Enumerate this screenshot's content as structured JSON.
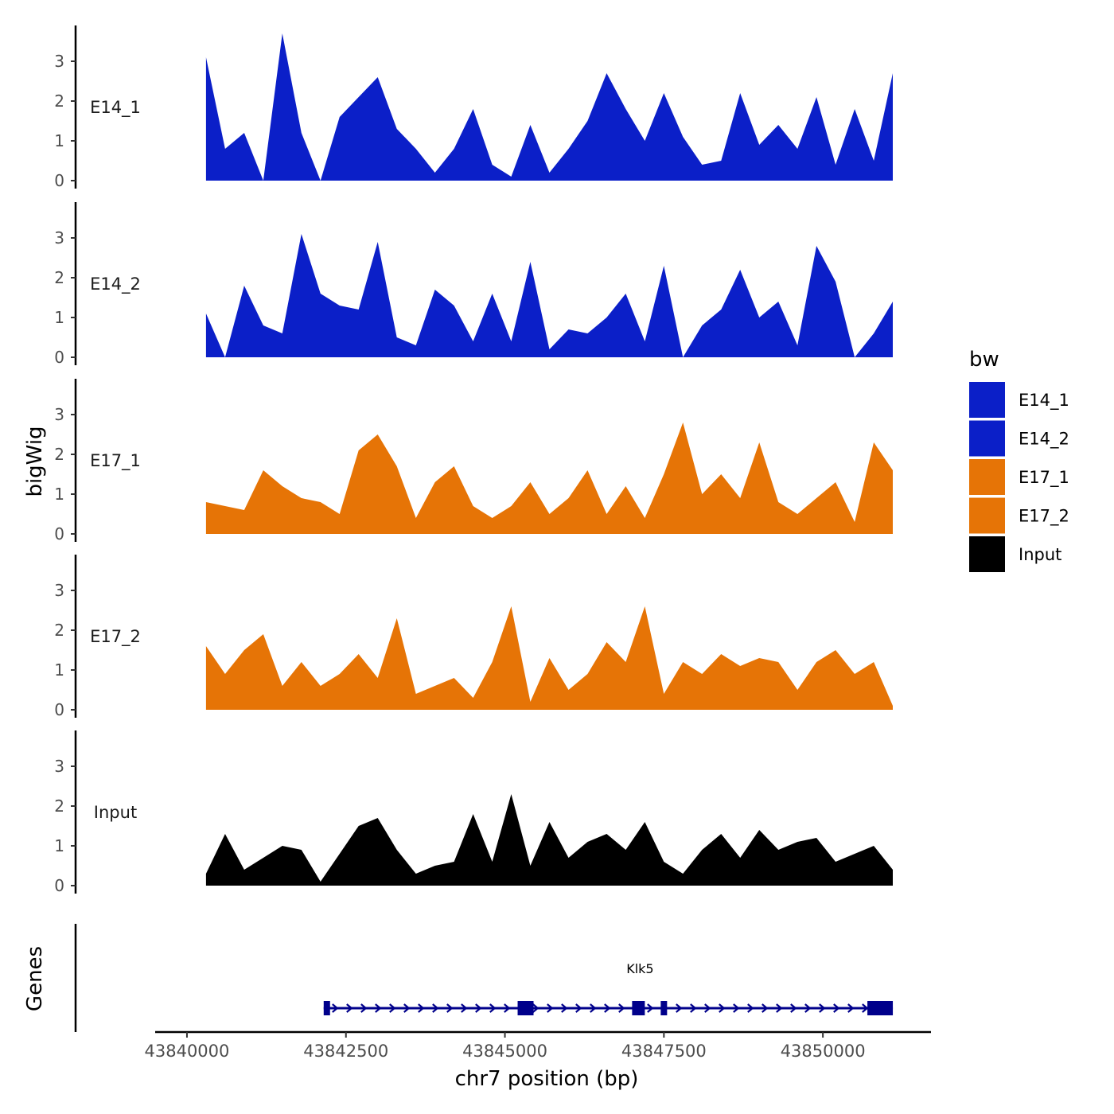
{
  "chart_data": {
    "type": "area",
    "title": "",
    "xlabel": "chr7 position (bp)",
    "ylabel_tracks": "bigWig",
    "ylabel_genes": "Genes",
    "xlim": [
      43839500,
      43851700
    ],
    "ylim": [
      0,
      3.9
    ],
    "x_ticks": [
      43840000,
      43842500,
      43845000,
      43847500,
      43850000
    ],
    "x_tick_labels": [
      "43840000",
      "43842500",
      "43845000",
      "43847500",
      "43850000"
    ],
    "y_ticks": [
      0,
      1,
      2,
      3
    ],
    "y_tick_labels": [
      "0",
      "1",
      "2",
      "3"
    ],
    "legend": {
      "title": "bw",
      "position": "right",
      "entries": [
        {
          "label": "E14_1",
          "color": "#0B1FC8"
        },
        {
          "label": "E14_2",
          "color": "#0B1FC8"
        },
        {
          "label": "E17_1",
          "color": "#E67406"
        },
        {
          "label": "E17_2",
          "color": "#E67406"
        },
        {
          "label": "Input",
          "color": "#000000"
        }
      ]
    },
    "x_sample_positions": [
      43840300,
      43840600,
      43840900,
      43841200,
      43841500,
      43841800,
      43842100,
      43842400,
      43842700,
      43843000,
      43843300,
      43843600,
      43843900,
      43844200,
      43844500,
      43844800,
      43845100,
      43845400,
      43845700,
      43846000,
      43846300,
      43846600,
      43846900,
      43847200,
      43847500,
      43847800,
      43848100,
      43848400,
      43848700,
      43849000,
      43849300,
      43849600,
      43849900,
      43850200,
      43850500,
      43850800,
      43851100
    ],
    "series": [
      {
        "name": "E14_1",
        "color": "#0B1FC8",
        "values": [
          3.1,
          0.8,
          1.2,
          0.0,
          3.7,
          1.2,
          0.0,
          1.6,
          2.1,
          2.6,
          1.3,
          0.8,
          0.2,
          0.8,
          1.8,
          0.4,
          0.1,
          1.4,
          0.2,
          0.8,
          1.5,
          2.7,
          1.8,
          1.0,
          2.2,
          1.1,
          0.4,
          0.5,
          2.2,
          0.9,
          1.4,
          0.8,
          2.1,
          0.4,
          1.8,
          0.5,
          2.7
        ]
      },
      {
        "name": "E14_2",
        "color": "#0B1FC8",
        "values": [
          1.1,
          0.0,
          1.8,
          0.8,
          0.6,
          3.1,
          1.6,
          1.3,
          1.2,
          2.9,
          0.5,
          0.3,
          1.7,
          1.3,
          0.4,
          1.6,
          0.4,
          2.4,
          0.2,
          0.7,
          0.6,
          1.0,
          1.6,
          0.4,
          2.3,
          0.0,
          0.8,
          1.2,
          2.2,
          1.0,
          1.4,
          0.3,
          2.8,
          1.9,
          0.0,
          0.6,
          1.4
        ]
      },
      {
        "name": "E17_1",
        "color": "#E67406",
        "values": [
          0.8,
          0.7,
          0.6,
          1.6,
          1.2,
          0.9,
          0.8,
          0.5,
          2.1,
          2.5,
          1.7,
          0.4,
          1.3,
          1.7,
          0.7,
          0.4,
          0.7,
          1.3,
          0.5,
          0.9,
          1.6,
          0.5,
          1.2,
          0.4,
          1.5,
          2.8,
          1.0,
          1.5,
          0.9,
          2.3,
          0.8,
          0.5,
          0.9,
          1.3,
          0.3,
          2.3,
          1.6
        ]
      },
      {
        "name": "E17_2",
        "color": "#E67406",
        "values": [
          1.6,
          0.9,
          1.5,
          1.9,
          0.6,
          1.2,
          0.6,
          0.9,
          1.4,
          0.8,
          2.3,
          0.4,
          0.6,
          0.8,
          0.3,
          1.2,
          2.6,
          0.2,
          1.3,
          0.5,
          0.9,
          1.7,
          1.2,
          2.6,
          0.4,
          1.2,
          0.9,
          1.4,
          1.1,
          1.3,
          1.2,
          0.5,
          1.2,
          1.5,
          0.9,
          1.2,
          0.1
        ]
      },
      {
        "name": "Input",
        "color": "#000000",
        "values": [
          0.3,
          1.3,
          0.4,
          0.7,
          1.0,
          0.9,
          0.1,
          0.8,
          1.5,
          1.7,
          0.9,
          0.3,
          0.5,
          0.6,
          1.8,
          0.6,
          2.3,
          0.5,
          1.6,
          0.7,
          1.1,
          1.3,
          0.9,
          1.6,
          0.6,
          0.3,
          0.9,
          1.3,
          0.7,
          1.4,
          0.9,
          1.1,
          1.2,
          0.6,
          0.8,
          1.0,
          0.4
        ]
      }
    ],
    "gene": {
      "name": "Klk5",
      "start": 43842150,
      "end": 43851100,
      "strand": "+",
      "color": "#00008B",
      "exons": [
        [
          43842150,
          43842250
        ],
        [
          43845200,
          43845450
        ],
        [
          43847000,
          43847200
        ],
        [
          43847450,
          43847550
        ],
        [
          43850700,
          43851100
        ]
      ]
    }
  }
}
